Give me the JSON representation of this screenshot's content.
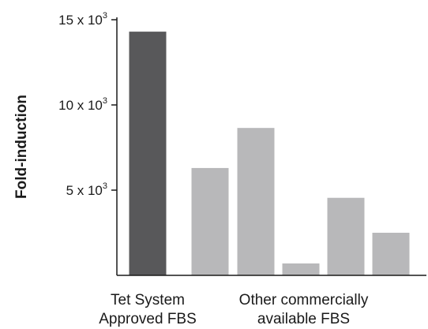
{
  "chart_data": {
    "type": "bar",
    "title": "",
    "ylabel": "Fold-induction",
    "xlabel": "",
    "ylim": [
      0,
      15500
    ],
    "yticks": [
      {
        "value": 5000,
        "mantissa": "5 x 10",
        "exponent": "3"
      },
      {
        "value": 10000,
        "mantissa": "10 x 10",
        "exponent": "3"
      },
      {
        "value": 15000,
        "mantissa": "15 x 10",
        "exponent": "3"
      }
    ],
    "groups": [
      {
        "label_lines": [
          "Tet System",
          "Approved FBS"
        ],
        "bars": [
          0
        ]
      },
      {
        "label_lines": [
          "Other commercially",
          "available FBS"
        ],
        "bars": [
          1,
          2,
          3,
          4,
          5
        ]
      }
    ],
    "values": [
      14300,
      6300,
      8650,
      700,
      4550,
      2500
    ],
    "bar_colors": [
      "#58585a",
      "#b8b8ba",
      "#b8b8ba",
      "#b8b8ba",
      "#b8b8ba",
      "#b8b8ba"
    ],
    "axis_color": "#1a1a1a",
    "grid": false,
    "legend": "none"
  }
}
